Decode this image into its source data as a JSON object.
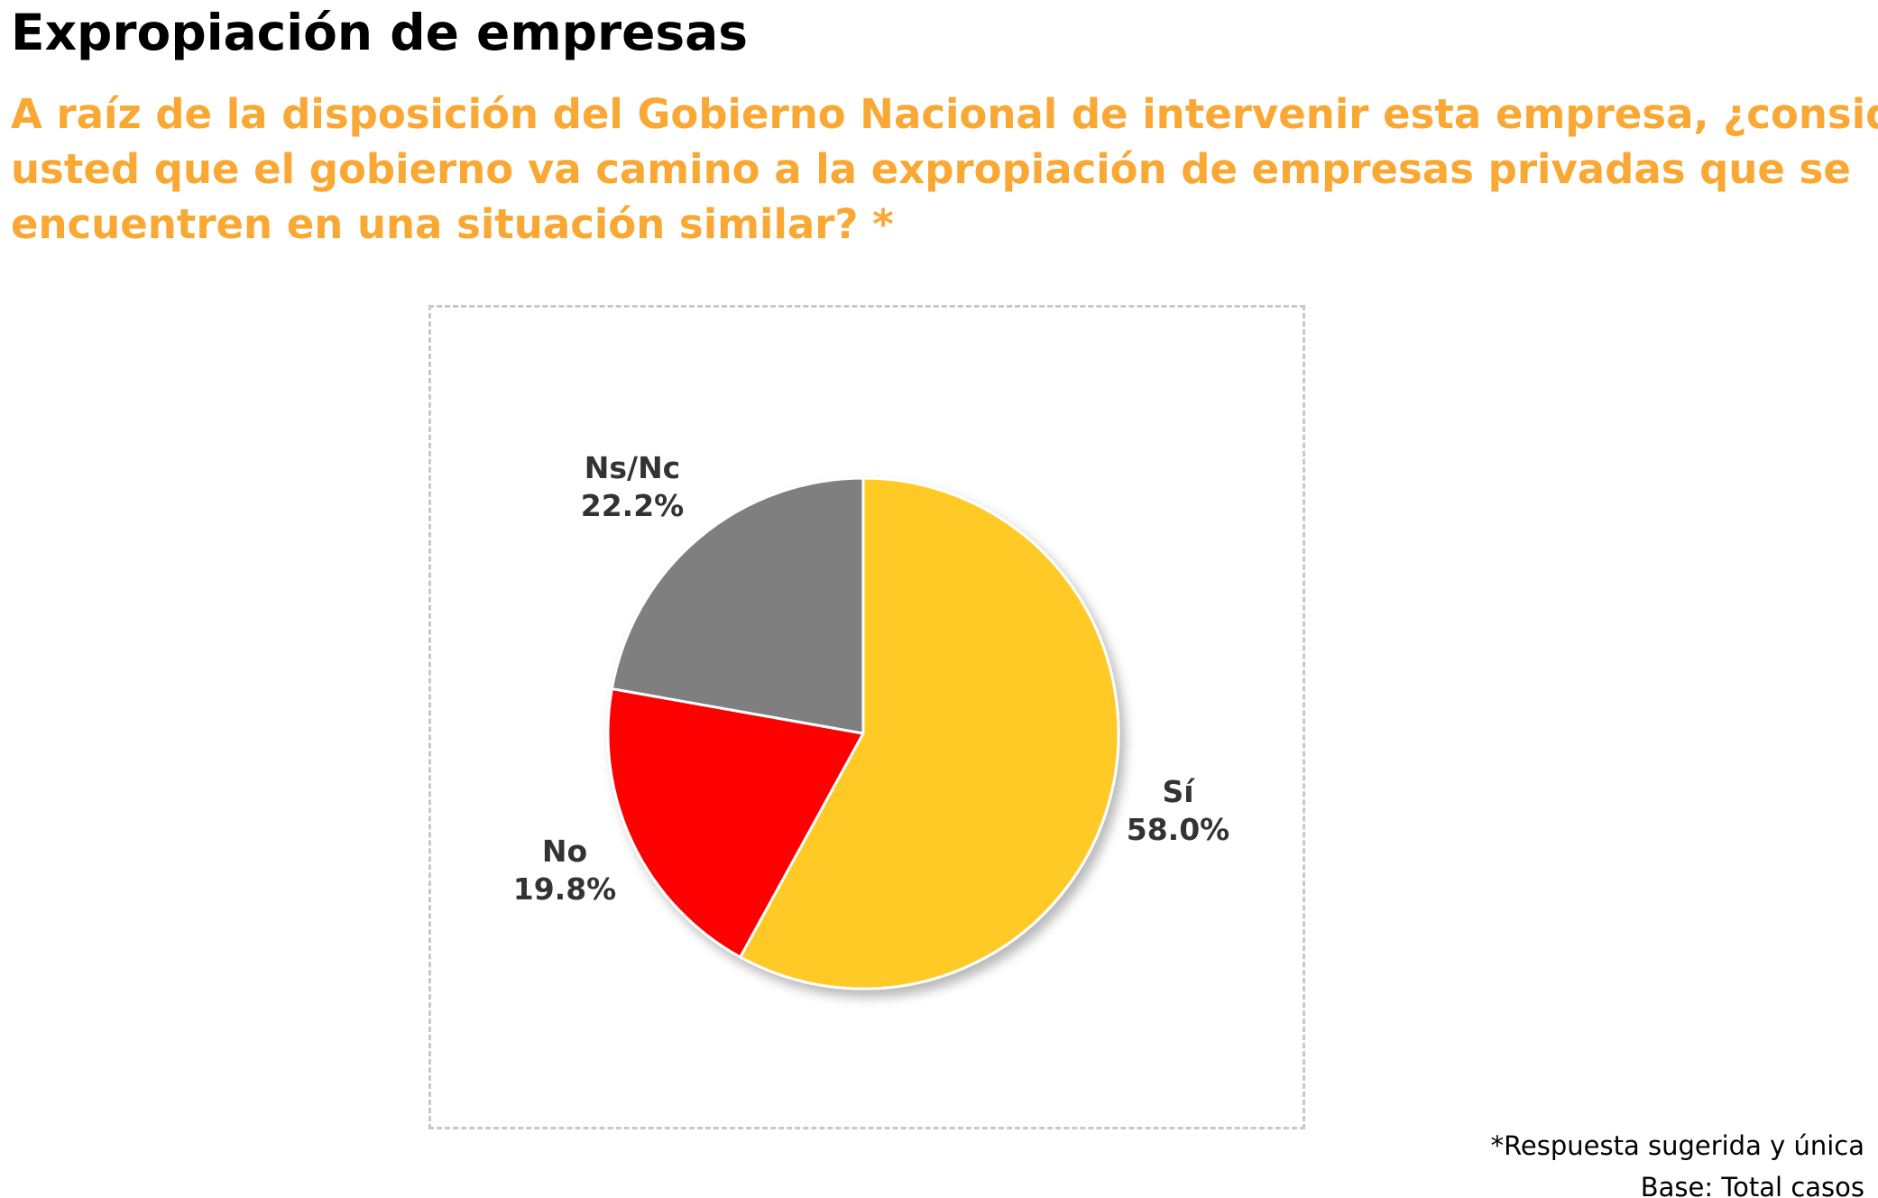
{
  "header": {
    "title": "Expropiación de empresas",
    "question_lines": [
      "A raíz de la disposición del Gobierno Nacional de intervenir esta empresa, ¿considera",
      "usted que el gobierno va camino a la expropiación de empresas privadas que se",
      "encuentren en una situación similar? *"
    ]
  },
  "chart_data": {
    "type": "pie",
    "start": "12 o'clock, clockwise",
    "slices": [
      {
        "label": "Sí",
        "value": 58.0,
        "display": "58.0%",
        "color": "#ffca28"
      },
      {
        "label": "No",
        "value": 19.8,
        "display": "19.8%",
        "color": "#ff0000"
      },
      {
        "label": "Ns/Nc",
        "value": 22.2,
        "display": "22.2%",
        "color": "#7f7f7f"
      }
    ],
    "legend": "none (labels beside slices)"
  },
  "footer": {
    "note": "*Respuesta sugerida y única",
    "base": "Base: Total casos"
  }
}
